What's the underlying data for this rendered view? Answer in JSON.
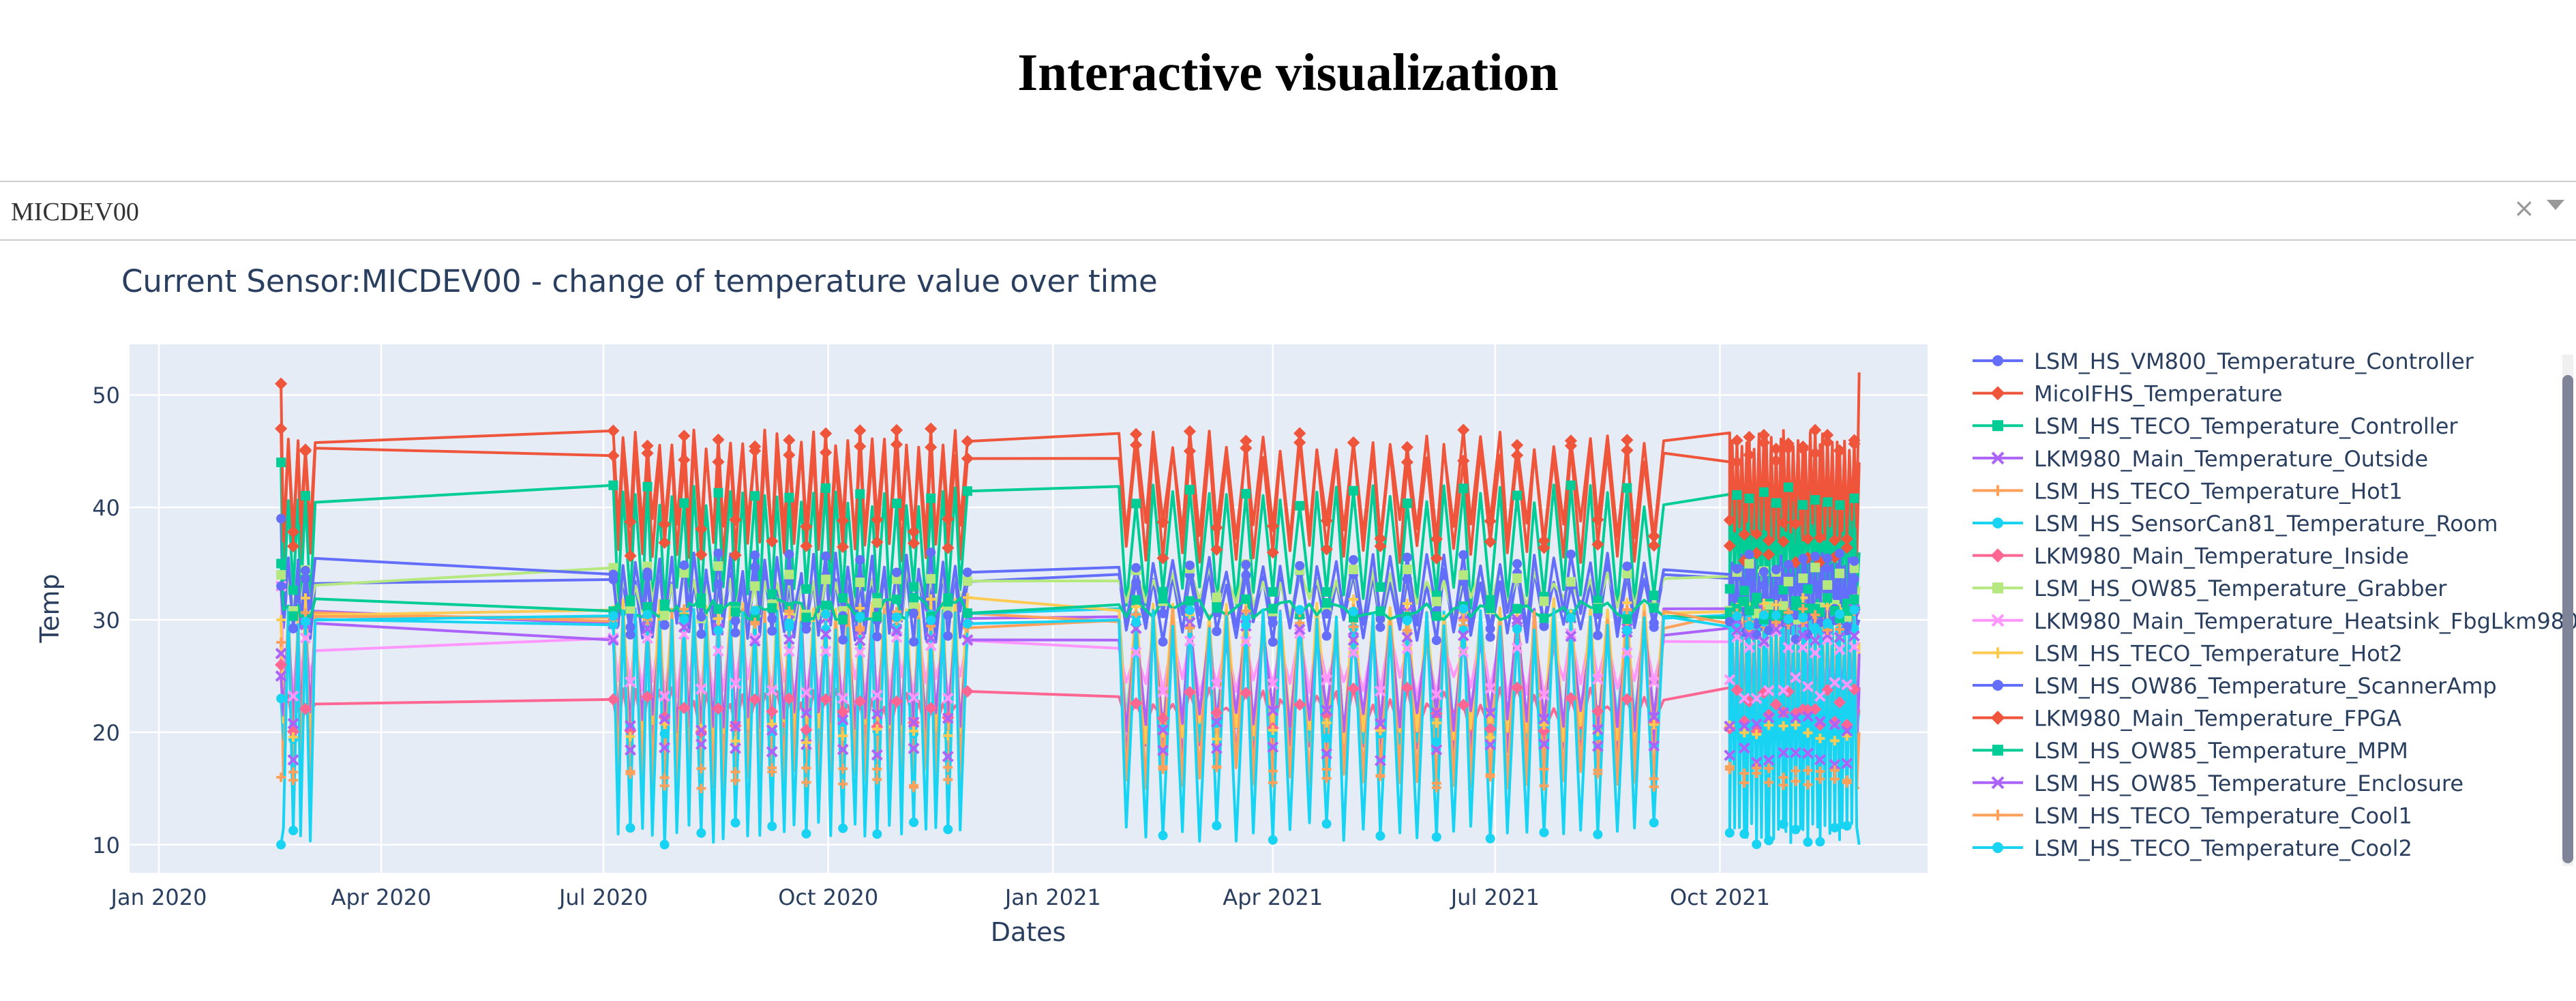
{
  "page": {
    "title": "Interactive visualization"
  },
  "dropdown": {
    "value": "MICDEV00",
    "clear_icon": "×",
    "arrow_icon": "chevron-down-icon"
  },
  "chart_data": {
    "type": "line",
    "title": "Current Sensor:MICDEV00 - change of temperature value over time",
    "xlabel": "Dates",
    "ylabel": "Temp",
    "x_axis_type": "date",
    "xlim": [
      "2019-12-20",
      "2021-12-25"
    ],
    "ylim": [
      7.5,
      54.5
    ],
    "x_ticks": [
      {
        "date": "2020-01-01",
        "label": "Jan 2020"
      },
      {
        "date": "2020-04-01",
        "label": "Apr 2020"
      },
      {
        "date": "2020-07-01",
        "label": "Jul 2020"
      },
      {
        "date": "2020-10-01",
        "label": "Oct 2020"
      },
      {
        "date": "2021-01-01",
        "label": "Jan 2021"
      },
      {
        "date": "2021-04-01",
        "label": "Apr 2021"
      },
      {
        "date": "2021-07-01",
        "label": "Jul 2021"
      },
      {
        "date": "2021-10-01",
        "label": "Oct 2021"
      }
    ],
    "y_ticks": [
      10,
      20,
      30,
      40,
      50
    ],
    "grid": true,
    "legend_position": "right",
    "plot_background": "#e5ecf6",
    "date_segments": [
      [
        "2020-02-20",
        "2020-03-05"
      ],
      [
        "2020-07-05",
        "2020-11-27"
      ],
      [
        "2021-01-28",
        "2021-09-08"
      ],
      [
        "2021-10-05",
        "2021-11-27"
      ]
    ],
    "series": [
      {
        "name": "LSM_HS_VM800_Temperature_Controller",
        "color": "#636efa",
        "marker": "circle",
        "start": 39,
        "low": 28,
        "high": 35,
        "end": 30
      },
      {
        "name": "MicoIFHS_Temperature",
        "color": "#ef553b",
        "marker": "diamond",
        "start": 47,
        "low": 35,
        "high": 46,
        "end": 44
      },
      {
        "name": "LSM_HS_TECO_Temperature_Controller",
        "color": "#00cc96",
        "marker": "square",
        "start": 44,
        "low": 31,
        "high": 42,
        "end": 36
      },
      {
        "name": "LKM980_Main_Temperature_Outside",
        "color": "#ab63fa",
        "marker": "x",
        "start": 27,
        "low": 17,
        "high": 31,
        "end": 24
      },
      {
        "name": "LSM_HS_TECO_Temperature_Hot1",
        "color": "#ffa15a",
        "marker": "cross",
        "start": 28,
        "low": 15,
        "high": 31,
        "end": 20
      },
      {
        "name": "LSM_HS_SensorCan81_Temperature_Room",
        "color": "#19d3f3",
        "marker": "circle",
        "start": 23,
        "low": 19,
        "high": 31,
        "end": 22
      },
      {
        "name": "LKM980_Main_Temperature_Inside",
        "color": "#ff6692",
        "marker": "diamond",
        "start": 26,
        "low": 20,
        "high": 24,
        "end": 22
      },
      {
        "name": "LSM_HS_OW85_Temperature_Grabber",
        "color": "#b6e880",
        "marker": "square",
        "start": 34,
        "low": 30,
        "high": 35,
        "end": 33
      },
      {
        "name": "LKM980_Main_Temperature_Heatsink_FbgLkm980",
        "color": "#ff97ff",
        "marker": "x",
        "start": 33,
        "low": 23,
        "high": 29,
        "end": 26
      },
      {
        "name": "LSM_HS_TECO_Temperature_Hot2",
        "color": "#fecb52",
        "marker": "cross",
        "start": 30,
        "low": 19,
        "high": 32,
        "end": 28
      },
      {
        "name": "LSM_HS_OW86_Temperature_ScannerAmp",
        "color": "#636efa",
        "marker": "circle",
        "start": 33,
        "low": 29,
        "high": 36,
        "end": 31
      },
      {
        "name": "LKM980_Main_Temperature_FPGA",
        "color": "#ef553b",
        "marker": "diamond",
        "start": 51,
        "low": 37,
        "high": 47,
        "end": 52
      },
      {
        "name": "LSM_HS_OW85_Temperature_MPM",
        "color": "#00cc96",
        "marker": "square",
        "start": 35,
        "low": 30,
        "high": 32,
        "end": 31
      },
      {
        "name": "LSM_HS_OW85_Temperature_Enclosure",
        "color": "#ab63fa",
        "marker": "x",
        "start": 25,
        "low": 20,
        "high": 30,
        "end": 27
      },
      {
        "name": "LSM_HS_TECO_Temperature_Cool1",
        "color": "#ffa15a",
        "marker": "cross",
        "start": 16,
        "low": 15,
        "high": 31,
        "end": 15
      },
      {
        "name": "LSM_HS_TECO_Temperature_Cool2",
        "color": "#19d3f3",
        "marker": "circle",
        "start": 10,
        "low": 10,
        "high": 31,
        "end": 10
      }
    ]
  }
}
